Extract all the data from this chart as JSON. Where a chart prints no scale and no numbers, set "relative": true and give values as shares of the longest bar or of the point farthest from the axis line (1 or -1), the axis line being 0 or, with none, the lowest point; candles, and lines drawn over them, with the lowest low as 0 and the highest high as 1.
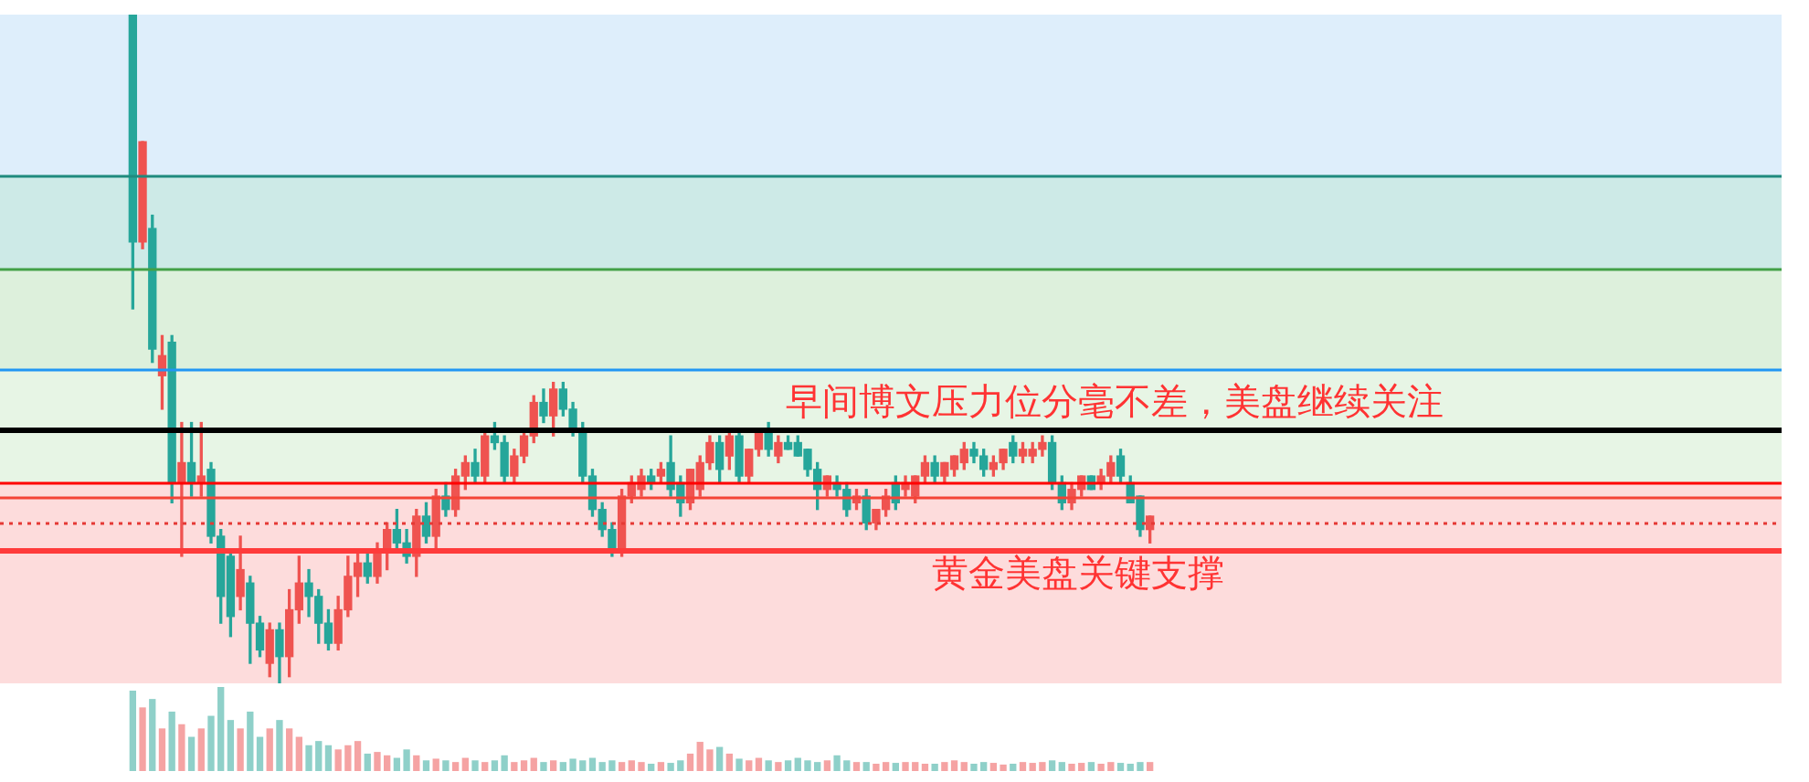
{
  "chart_data": [
    {
      "type": "candlestick",
      "relative": true,
      "categories": [
        null,
        null,
        null,
        null,
        null,
        null,
        null,
        null,
        null,
        null,
        null,
        null,
        null,
        null,
        null,
        null,
        null,
        null,
        null,
        null,
        null,
        null,
        null,
        null,
        null,
        null,
        null,
        null,
        null,
        null,
        null,
        null,
        null,
        null,
        null,
        null,
        null,
        null,
        null,
        null,
        null,
        null,
        null,
        null,
        null,
        null,
        null,
        null,
        null,
        null,
        null,
        null,
        null,
        null,
        null,
        null,
        null,
        null,
        null,
        null,
        null,
        null,
        null,
        null,
        null,
        null,
        null,
        null,
        null,
        null,
        null,
        null,
        null,
        null,
        null,
        null,
        null,
        null,
        null,
        null,
        null,
        null,
        null,
        null,
        null,
        null,
        null,
        null,
        null,
        null,
        null,
        null,
        null,
        null,
        null,
        null,
        null,
        null,
        null,
        null,
        null,
        null,
        null,
        null,
        null
      ],
      "series": [
        {
          "type": "candlestick",
          "ohlc": [
            [
              1.0,
              1.0,
              0.56,
              0.66
            ],
            [
              0.66,
              0.81,
              0.65,
              0.81
            ],
            [
              0.68,
              0.7,
              0.48,
              0.5
            ],
            [
              0.46,
              0.52,
              0.41,
              0.49
            ],
            [
              0.51,
              0.52,
              0.27,
              0.3
            ],
            [
              0.3,
              0.39,
              0.19,
              0.33
            ],
            [
              0.33,
              0.39,
              0.28,
              0.3
            ],
            [
              0.3,
              0.39,
              0.28,
              0.31
            ],
            [
              0.32,
              0.33,
              0.21,
              0.22
            ],
            [
              0.22,
              0.23,
              0.09,
              0.13
            ],
            [
              0.19,
              0.2,
              0.07,
              0.1
            ],
            [
              0.13,
              0.22,
              0.11,
              0.17
            ],
            [
              0.15,
              0.16,
              0.03,
              0.09
            ],
            [
              0.09,
              0.1,
              0.04,
              0.05
            ],
            [
              0.03,
              0.09,
              0.01,
              0.08
            ],
            [
              0.08,
              0.09,
              0.0,
              0.04
            ],
            [
              0.04,
              0.14,
              0.01,
              0.11
            ],
            [
              0.11,
              0.19,
              0.09,
              0.15
            ],
            [
              0.15,
              0.17,
              0.1,
              0.13
            ],
            [
              0.13,
              0.14,
              0.06,
              0.09
            ],
            [
              0.09,
              0.11,
              0.05,
              0.06
            ],
            [
              0.06,
              0.13,
              0.05,
              0.11
            ],
            [
              0.11,
              0.19,
              0.1,
              0.16
            ],
            [
              0.16,
              0.2,
              0.13,
              0.18
            ],
            [
              0.18,
              0.2,
              0.15,
              0.16
            ],
            [
              0.16,
              0.21,
              0.15,
              0.2
            ],
            [
              0.2,
              0.24,
              0.17,
              0.23
            ],
            [
              0.23,
              0.26,
              0.2,
              0.21
            ],
            [
              0.21,
              0.23,
              0.18,
              0.19
            ],
            [
              0.19,
              0.26,
              0.16,
              0.25
            ],
            [
              0.25,
              0.27,
              0.21,
              0.22
            ],
            [
              0.22,
              0.29,
              0.2,
              0.28
            ],
            [
              0.28,
              0.3,
              0.25,
              0.26
            ],
            [
              0.26,
              0.32,
              0.25,
              0.31
            ],
            [
              0.31,
              0.34,
              0.29,
              0.33
            ],
            [
              0.33,
              0.35,
              0.3,
              0.31
            ],
            [
              0.31,
              0.38,
              0.3,
              0.37
            ],
            [
              0.37,
              0.39,
              0.35,
              0.36
            ],
            [
              0.36,
              0.37,
              0.3,
              0.31
            ],
            [
              0.31,
              0.35,
              0.3,
              0.34
            ],
            [
              0.34,
              0.38,
              0.33,
              0.37
            ],
            [
              0.37,
              0.43,
              0.36,
              0.42
            ],
            [
              0.42,
              0.44,
              0.39,
              0.4
            ],
            [
              0.4,
              0.45,
              0.37,
              0.44
            ],
            [
              0.44,
              0.45,
              0.4,
              0.41
            ],
            [
              0.41,
              0.42,
              0.37,
              0.38
            ],
            [
              0.38,
              0.39,
              0.3,
              0.31
            ],
            [
              0.31,
              0.32,
              0.25,
              0.26
            ],
            [
              0.26,
              0.27,
              0.22,
              0.23
            ],
            [
              0.23,
              0.24,
              0.19,
              0.2
            ],
            [
              0.2,
              0.29,
              0.19,
              0.28
            ],
            [
              0.28,
              0.31,
              0.27,
              0.3
            ],
            [
              0.29,
              0.32,
              0.28,
              0.31
            ],
            [
              0.31,
              0.32,
              0.29,
              0.3
            ],
            [
              0.31,
              0.33,
              0.3,
              0.32
            ],
            [
              0.33,
              0.37,
              0.28,
              0.29
            ],
            [
              0.3,
              0.31,
              0.25,
              0.27
            ],
            [
              0.27,
              0.32,
              0.26,
              0.32
            ],
            [
              0.29,
              0.34,
              0.28,
              0.33
            ],
            [
              0.33,
              0.37,
              0.32,
              0.36
            ],
            [
              0.36,
              0.37,
              0.3,
              0.32
            ],
            [
              0.34,
              0.38,
              0.32,
              0.37
            ],
            [
              0.37,
              0.38,
              0.3,
              0.31
            ],
            [
              0.31,
              0.35,
              0.3,
              0.35
            ],
            [
              0.35,
              0.38,
              0.34,
              0.38
            ],
            [
              0.38,
              0.39,
              0.34,
              0.35
            ],
            [
              0.34,
              0.37,
              0.33,
              0.36
            ],
            [
              0.36,
              0.37,
              0.35,
              0.35
            ],
            [
              0.36,
              0.37,
              0.34,
              0.34
            ],
            [
              0.35,
              0.35,
              0.31,
              0.32
            ],
            [
              0.32,
              0.33,
              0.26,
              0.29
            ],
            [
              0.29,
              0.31,
              0.28,
              0.31
            ],
            [
              0.3,
              0.31,
              0.28,
              0.29
            ],
            [
              0.29,
              0.3,
              0.25,
              0.26
            ],
            [
              0.27,
              0.29,
              0.26,
              0.28
            ],
            [
              0.28,
              0.29,
              0.23,
              0.24
            ],
            [
              0.24,
              0.26,
              0.23,
              0.26
            ],
            [
              0.26,
              0.29,
              0.25,
              0.28
            ],
            [
              0.3,
              0.31,
              0.26,
              0.27
            ],
            [
              0.29,
              0.31,
              0.28,
              0.3
            ],
            [
              0.28,
              0.31,
              0.27,
              0.31
            ],
            [
              0.31,
              0.34,
              0.3,
              0.33
            ],
            [
              0.33,
              0.34,
              0.3,
              0.31
            ],
            [
              0.31,
              0.33,
              0.3,
              0.33
            ],
            [
              0.32,
              0.34,
              0.31,
              0.34
            ],
            [
              0.33,
              0.36,
              0.32,
              0.35
            ],
            [
              0.35,
              0.36,
              0.33,
              0.34
            ],
            [
              0.34,
              0.35,
              0.31,
              0.32
            ],
            [
              0.32,
              0.34,
              0.31,
              0.33
            ],
            [
              0.33,
              0.35,
              0.32,
              0.35
            ],
            [
              0.36,
              0.37,
              0.33,
              0.34
            ],
            [
              0.34,
              0.36,
              0.33,
              0.35
            ],
            [
              0.34,
              0.36,
              0.33,
              0.35
            ],
            [
              0.35,
              0.37,
              0.34,
              0.36
            ],
            [
              0.36,
              0.37,
              0.29,
              0.3
            ],
            [
              0.3,
              0.31,
              0.26,
              0.27
            ],
            [
              0.27,
              0.3,
              0.26,
              0.29
            ],
            [
              0.29,
              0.31,
              0.28,
              0.31
            ],
            [
              0.31,
              0.31,
              0.29,
              0.29
            ],
            [
              0.3,
              0.32,
              0.29,
              0.31
            ],
            [
              0.31,
              0.34,
              0.3,
              0.33
            ],
            [
              0.34,
              0.35,
              0.3,
              0.31
            ],
            [
              0.3,
              0.31,
              0.27,
              0.27
            ],
            [
              0.28,
              0.28,
              0.22,
              0.23
            ],
            [
              0.23,
              0.25,
              0.21,
              0.25
            ]
          ],
          "colors": [
            "#26a69a",
            "#ef5350",
            "#26a69a",
            "#ef5350",
            "#26a69a",
            "#ef5350",
            "#26a69a",
            "#ef5350",
            "#26a69a",
            "#26a69a",
            "#26a69a",
            "#ef5350",
            "#26a69a",
            "#26a69a",
            "#ef5350",
            "#26a69a",
            "#ef5350",
            "#ef5350",
            "#26a69a",
            "#26a69a",
            "#26a69a",
            "#ef5350",
            "#ef5350",
            "#ef5350",
            "#26a69a",
            "#ef5350",
            "#ef5350",
            "#26a69a",
            "#26a69a",
            "#ef5350",
            "#26a69a",
            "#ef5350",
            "#26a69a",
            "#ef5350",
            "#ef5350",
            "#26a69a",
            "#ef5350",
            "#26a69a",
            "#26a69a",
            "#ef5350",
            "#ef5350",
            "#ef5350",
            "#26a69a",
            "#ef5350",
            "#26a69a",
            "#26a69a",
            "#26a69a",
            "#26a69a",
            "#26a69a",
            "#26a69a",
            "#ef5350",
            "#ef5350",
            "#ef5350",
            "#26a69a",
            "#ef5350",
            "#26a69a",
            "#26a69a",
            "#ef5350",
            "#ef5350",
            "#ef5350",
            "#26a69a",
            "#ef5350",
            "#26a69a",
            "#ef5350",
            "#ef5350",
            "#26a69a",
            "#ef5350",
            "#26a69a",
            "#26a69a",
            "#26a69a",
            "#26a69a",
            "#ef5350",
            "#26a69a",
            "#26a69a",
            "#ef5350",
            "#26a69a",
            "#ef5350",
            "#ef5350",
            "#26a69a",
            "#ef5350",
            "#ef5350",
            "#ef5350",
            "#26a69a",
            "#ef5350",
            "#ef5350",
            "#ef5350",
            "#26a69a",
            "#26a69a",
            "#ef5350",
            "#ef5350",
            "#26a69a",
            "#ef5350",
            "#ef5350",
            "#ef5350",
            "#26a69a",
            "#26a69a",
            "#ef5350",
            "#ef5350",
            "#26a69a",
            "#ef5350",
            "#ef5350",
            "#26a69a",
            "#26a69a",
            "#26a69a",
            "#ef5350"
          ]
        }
      ],
      "bands": [
        {
          "axis": "y",
          "from": 0.76,
          "to": 1.0,
          "color": "#deeefb"
        },
        {
          "axis": "y",
          "from": 0.62,
          "to": 0.76,
          "color": "#cdeae7"
        },
        {
          "axis": "y",
          "from": 0.47,
          "to": 0.62,
          "color": "#ddf0dc"
        },
        {
          "axis": "y",
          "from": 0.3,
          "to": 0.47,
          "color": "#e7f5e5"
        },
        {
          "axis": "y",
          "from": 0.0,
          "to": 0.3,
          "color": "#fddcdc"
        }
      ],
      "ref_lines": [
        {
          "axis": "y",
          "value": 0.76,
          "color": "#1f8a7e"
        },
        {
          "axis": "y",
          "value": 0.62,
          "color": "#43a047"
        },
        {
          "axis": "y",
          "value": 0.47,
          "color": "#2196f3"
        },
        {
          "axis": "y",
          "value": 0.38,
          "color": "#000000",
          "label": "早间博文压力位分毫不差，美盘继续关注"
        },
        {
          "axis": "y",
          "value": 0.3,
          "color": "#ff0000"
        },
        {
          "axis": "y",
          "value": 0.28,
          "color": "#f44336"
        },
        {
          "axis": "y",
          "value": 0.24,
          "color": "#e53935",
          "line_style": "dotted"
        },
        {
          "axis": "y",
          "value": 0.2,
          "color": "#ff3b3b",
          "label": "黄金美盘关键支撑"
        }
      ]
    },
    {
      "type": "bar",
      "relative": true,
      "categories": [
        null,
        null,
        null,
        null,
        null,
        null,
        null,
        null,
        null,
        null,
        null,
        null,
        null,
        null,
        null,
        null,
        null,
        null,
        null,
        null,
        null,
        null,
        null,
        null,
        null,
        null,
        null,
        null,
        null,
        null,
        null,
        null,
        null,
        null,
        null,
        null,
        null,
        null,
        null,
        null,
        null,
        null,
        null,
        null,
        null,
        null,
        null,
        null,
        null,
        null,
        null,
        null,
        null,
        null,
        null,
        null,
        null,
        null,
        null,
        null,
        null,
        null,
        null,
        null,
        null,
        null,
        null,
        null,
        null,
        null,
        null,
        null,
        null,
        null,
        null,
        null,
        null,
        null,
        null,
        null,
        null,
        null,
        null,
        null,
        null,
        null,
        null,
        null,
        null,
        null,
        null,
        null,
        null,
        null,
        null,
        null,
        null,
        null,
        null,
        null,
        null,
        null,
        null,
        null,
        null
      ],
      "values": [
        0.95,
        0.75,
        0.85,
        0.5,
        0.7,
        0.55,
        0.4,
        0.5,
        0.65,
        1,
        0.6,
        0.5,
        0.7,
        0.4,
        0.5,
        0.6,
        0.5,
        0.4,
        0.3,
        0.35,
        0.3,
        0.25,
        0.3,
        0.35,
        0.2,
        0.22,
        0.18,
        0.15,
        0.25,
        0.18,
        0.12,
        0.14,
        0.12,
        0.1,
        0.15,
        0.12,
        0.1,
        0.12,
        0.18,
        0.1,
        0.12,
        0.15,
        0.1,
        0.12,
        0.1,
        0.14,
        0.12,
        0.15,
        0.1,
        0.12,
        0.1,
        0.12,
        0.1,
        0.08,
        0.1,
        0.09,
        0.12,
        0.2,
        0.34,
        0.25,
        0.28,
        0.2,
        0.14,
        0.12,
        0.15,
        0.12,
        0.1,
        0.12,
        0.15,
        0.12,
        0.1,
        0.12,
        0.18,
        0.12,
        0.1,
        0.1,
        0.08,
        0.1,
        0.09,
        0.1,
        0.1,
        0.08,
        0.08,
        0.1,
        0.12,
        0.1,
        0.08,
        0.1,
        0.09,
        0.07,
        0.08,
        0.1,
        0.09,
        0.1,
        0.12,
        0.1,
        0.08,
        0.09,
        0.1,
        0.08,
        0.1,
        0.09,
        0.08,
        0.1,
        0.1
      ],
      "colors": [
        "#8fd0c9",
        "#f5a3a3",
        "#8fd0c9",
        "#f5a3a3",
        "#8fd0c9",
        "#f5a3a3",
        "#8fd0c9",
        "#f5a3a3",
        "#8fd0c9",
        "#8fd0c9",
        "#8fd0c9",
        "#f5a3a3",
        "#8fd0c9",
        "#8fd0c9",
        "#f5a3a3",
        "#8fd0c9",
        "#f5a3a3",
        "#f5a3a3",
        "#8fd0c9",
        "#8fd0c9",
        "#8fd0c9",
        "#f5a3a3",
        "#f5a3a3",
        "#f5a3a3",
        "#8fd0c9",
        "#f5a3a3",
        "#f5a3a3",
        "#8fd0c9",
        "#8fd0c9",
        "#f5a3a3",
        "#8fd0c9",
        "#f5a3a3",
        "#8fd0c9",
        "#f5a3a3",
        "#f5a3a3",
        "#8fd0c9",
        "#f5a3a3",
        "#8fd0c9",
        "#8fd0c9",
        "#f5a3a3",
        "#f5a3a3",
        "#f5a3a3",
        "#8fd0c9",
        "#f5a3a3",
        "#8fd0c9",
        "#8fd0c9",
        "#8fd0c9",
        "#8fd0c9",
        "#8fd0c9",
        "#8fd0c9",
        "#f5a3a3",
        "#f5a3a3",
        "#f5a3a3",
        "#8fd0c9",
        "#f5a3a3",
        "#8fd0c9",
        "#8fd0c9",
        "#f5a3a3",
        "#f5a3a3",
        "#f5a3a3",
        "#8fd0c9",
        "#f5a3a3",
        "#8fd0c9",
        "#f5a3a3",
        "#f5a3a3",
        "#8fd0c9",
        "#f5a3a3",
        "#8fd0c9",
        "#8fd0c9",
        "#8fd0c9",
        "#8fd0c9",
        "#f5a3a3",
        "#8fd0c9",
        "#8fd0c9",
        "#f5a3a3",
        "#8fd0c9",
        "#f5a3a3",
        "#f5a3a3",
        "#8fd0c9",
        "#f5a3a3",
        "#f5a3a3",
        "#f5a3a3",
        "#8fd0c9",
        "#f5a3a3",
        "#f5a3a3",
        "#f5a3a3",
        "#8fd0c9",
        "#8fd0c9",
        "#f5a3a3",
        "#f5a3a3",
        "#8fd0c9",
        "#f5a3a3",
        "#f5a3a3",
        "#f5a3a3",
        "#8fd0c9",
        "#8fd0c9",
        "#f5a3a3",
        "#f5a3a3",
        "#8fd0c9",
        "#f5a3a3",
        "#f5a3a3",
        "#8fd0c9",
        "#8fd0c9",
        "#8fd0c9",
        "#f5a3a3"
      ]
    }
  ]
}
